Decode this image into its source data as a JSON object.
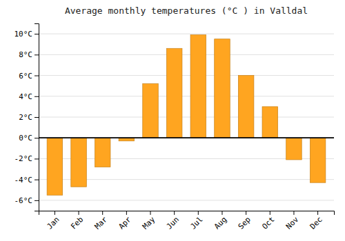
{
  "chart_data": {
    "type": "bar",
    "title": "Average monthly temperatures (°C ) in Valldal",
    "categories": [
      "Jan",
      "Feb",
      "Mar",
      "Apr",
      "May",
      "Jun",
      "Jul",
      "Aug",
      "Sep",
      "Oct",
      "Nov",
      "Dec"
    ],
    "values": [
      -5.5,
      -4.7,
      -2.8,
      -0.3,
      5.2,
      8.6,
      9.9,
      9.5,
      6.0,
      3.0,
      -2.1,
      -4.3
    ],
    "color": "#FFA520",
    "ylim": [
      -7.0,
      11.0
    ],
    "yticks": [
      {
        "value": -6,
        "label": "-6°C"
      },
      {
        "value": -4,
        "label": "-4°C"
      },
      {
        "value": -2,
        "label": "-2°C"
      },
      {
        "value": 0,
        "label": "0°C"
      },
      {
        "value": 2,
        "label": "2°C"
      },
      {
        "value": 4,
        "label": "4°C"
      },
      {
        "value": 6,
        "label": "6°C"
      },
      {
        "value": 8,
        "label": "8°C"
      },
      {
        "value": 10,
        "label": "10°C"
      }
    ],
    "grid": true
  }
}
